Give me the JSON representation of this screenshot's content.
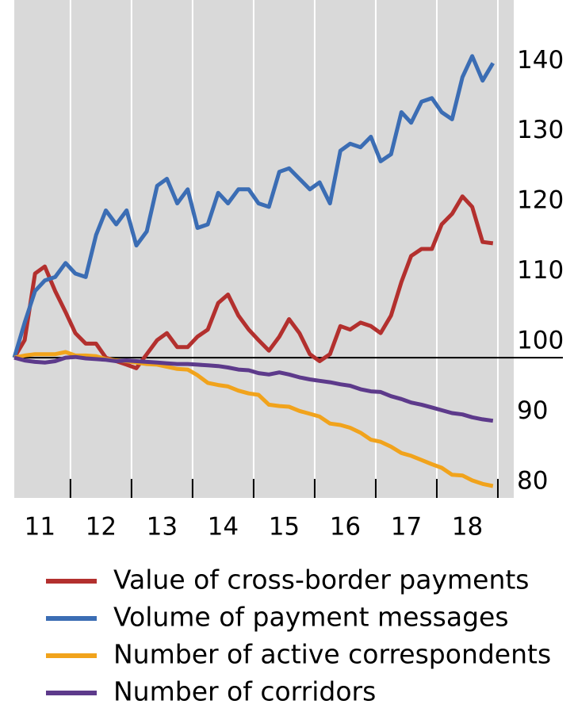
{
  "chart_data": {
    "type": "line",
    "x": [
      2011.08,
      2011.25,
      2011.42,
      2011.58,
      2011.75,
      2011.92,
      2012.08,
      2012.25,
      2012.42,
      2012.58,
      2012.75,
      2012.92,
      2013.08,
      2013.25,
      2013.42,
      2013.58,
      2013.75,
      2013.92,
      2014.08,
      2014.25,
      2014.42,
      2014.58,
      2014.75,
      2014.92,
      2015.08,
      2015.25,
      2015.42,
      2015.58,
      2015.75,
      2015.92,
      2016.08,
      2016.25,
      2016.42,
      2016.58,
      2016.75,
      2016.92,
      2017.08,
      2017.25,
      2017.42,
      2017.58,
      2017.75,
      2017.92,
      2018.08,
      2018.25,
      2018.42,
      2018.58,
      2018.75,
      2018.92
    ],
    "series": [
      {
        "name": "Value of cross-border payments",
        "color": "#b3302e",
        "values": [
          100,
          102.5,
          112,
          113,
          109.5,
          106.5,
          103.5,
          102,
          102,
          100,
          99.5,
          99,
          98.5,
          100.5,
          102.5,
          103.5,
          101.5,
          101.5,
          103,
          104,
          107.8,
          109,
          106,
          104,
          102.5,
          101,
          103,
          105.5,
          103.5,
          100.5,
          99.5,
          100.5,
          104.5,
          104,
          105,
          104.5,
          103.5,
          106,
          110.8,
          114.5,
          115.5,
          115.5,
          119,
          120.5,
          123,
          121.5,
          116.5,
          116.3
        ]
      },
      {
        "name": "Volume of payment messages",
        "color": "#3b6db4",
        "values": [
          100,
          105,
          109.5,
          111,
          111.5,
          113.5,
          112,
          111.5,
          117.5,
          121,
          119,
          121,
          116,
          118,
          124.5,
          125.5,
          122,
          124,
          118.5,
          119,
          123.5,
          122,
          124,
          124,
          122,
          121.5,
          126.5,
          127,
          125.5,
          124,
          125,
          122,
          129.5,
          130.5,
          130,
          131.5,
          128,
          129,
          135,
          133.5,
          136.5,
          137,
          135,
          134,
          140,
          143,
          139.5,
          142
        ]
      },
      {
        "name": "Number of active correspondents",
        "color": "#f1a31c",
        "values": [
          100,
          100.3,
          100.5,
          100.5,
          100.5,
          100.8,
          100.3,
          100.3,
          100.2,
          99.8,
          99.6,
          99.5,
          99.3,
          99.1,
          99,
          98.7,
          98.4,
          98.3,
          97.5,
          96.4,
          96.1,
          95.9,
          95.3,
          94.9,
          94.7,
          93.3,
          93.1,
          93,
          92.4,
          92,
          91.6,
          90.6,
          90.4,
          90,
          89.3,
          88.3,
          88,
          87.3,
          86.4,
          86,
          85.4,
          84.8,
          84.3,
          83.3,
          83.2,
          82.5,
          82,
          81.7
        ]
      },
      {
        "name": "Number of corridors",
        "color": "#5d3a8b",
        "values": [
          100,
          99.6,
          99.4,
          99.3,
          99.5,
          100,
          100.1,
          99.9,
          99.8,
          99.7,
          99.5,
          99.6,
          99.5,
          99.4,
          99.3,
          99.2,
          99.1,
          99.1,
          99,
          98.9,
          98.8,
          98.6,
          98.3,
          98.2,
          97.8,
          97.6,
          97.9,
          97.6,
          97.2,
          96.9,
          96.7,
          96.5,
          96.2,
          96,
          95.5,
          95.2,
          95.1,
          94.5,
          94.1,
          93.6,
          93.3,
          92.9,
          92.5,
          92.1,
          91.9,
          91.5,
          91.2,
          91
        ]
      }
    ],
    "xlim": [
      2011.08,
      2019.26
    ],
    "xticks": [
      {
        "value": 2011.5,
        "label": "11"
      },
      {
        "value": 2012.5,
        "label": "12"
      },
      {
        "value": 2013.5,
        "label": "13"
      },
      {
        "value": 2014.5,
        "label": "14"
      },
      {
        "value": 2015.5,
        "label": "15"
      },
      {
        "value": 2016.5,
        "label": "16"
      },
      {
        "value": 2017.5,
        "label": "17"
      },
      {
        "value": 2018.5,
        "label": "18"
      }
    ],
    "xgrid": [
      2012,
      2013,
      2014,
      2015,
      2016,
      2017,
      2018,
      2019
    ],
    "ylim": [
      80,
      151
    ],
    "yticks": [
      80,
      90,
      100,
      110,
      120,
      130,
      140
    ],
    "reference_line": 100,
    "legend": "bottom"
  }
}
